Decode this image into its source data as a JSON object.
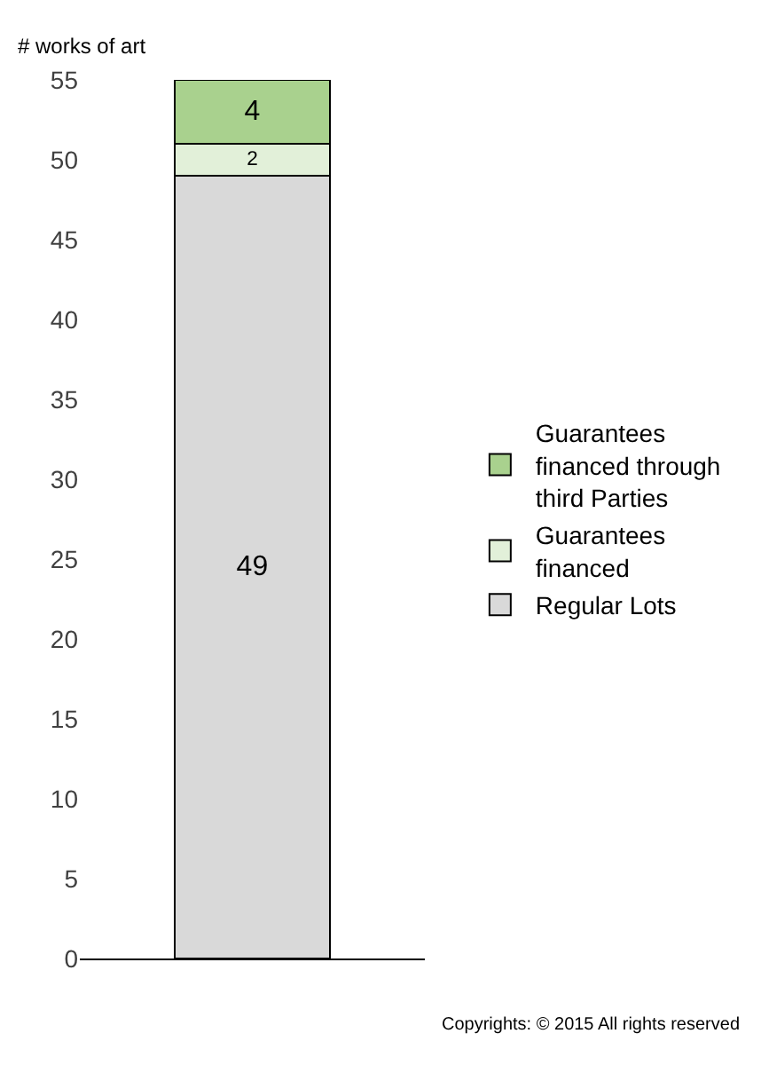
{
  "chart_data": {
    "type": "bar",
    "stacked": true,
    "ylabel": "# works of art",
    "categories": [
      null
    ],
    "series": [
      {
        "name": "Regular Lots",
        "color": "#d9d9d9",
        "values": [
          49
        ]
      },
      {
        "name": "Guarantees financed",
        "color": "#e2f0d9",
        "values": [
          2
        ]
      },
      {
        "name": "Guarantees financed through third Parties",
        "color": "#a9d18e",
        "values": [
          4
        ]
      }
    ],
    "ylim": [
      0,
      55
    ],
    "yticks": [
      0,
      5,
      10,
      15,
      20,
      25,
      30,
      35,
      40,
      45,
      50,
      55
    ],
    "legend": "right",
    "data_labels": true,
    "annotations": [
      "Copyrights: © 2015 All rights reserved"
    ]
  }
}
